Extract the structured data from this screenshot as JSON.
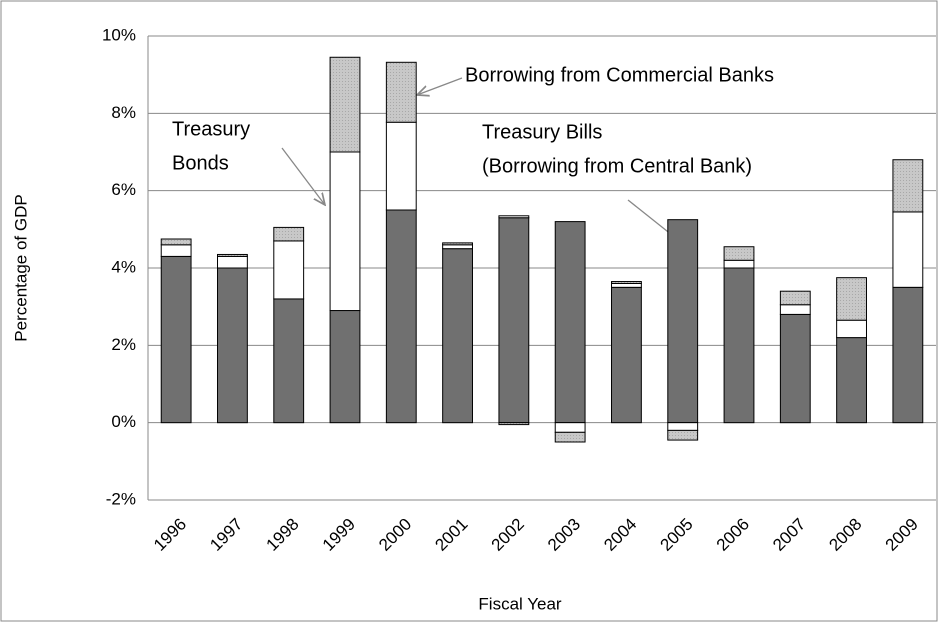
{
  "chart_data": {
    "type": "stacked_bar",
    "x_label": "Fiscal Year",
    "y_label": "Percentage of GDP",
    "categories": [
      "1996",
      "1997",
      "1998",
      "1999",
      "2000",
      "2001",
      "2002",
      "2003",
      "2004",
      "2005",
      "2006",
      "2007",
      "2008",
      "2009"
    ],
    "series": [
      {
        "name": [
          "Treasury Bills",
          "(Borrowing from Central Bank)"
        ],
        "color": "#707070",
        "values": [
          4.3,
          4.0,
          3.2,
          2.9,
          5.5,
          4.5,
          5.3,
          5.2,
          3.5,
          5.25,
          4.0,
          2.8,
          2.2,
          3.5
        ]
      },
      {
        "name": [
          "Treasury",
          "Bonds"
        ],
        "color": "#ffffff",
        "values": [
          0.3,
          0.3,
          1.5,
          4.1,
          2.27,
          0.1,
          0.05,
          -0.25,
          0.1,
          -0.2,
          0.2,
          0.25,
          0.45,
          1.95
        ]
      },
      {
        "name": [
          "Borrowing from Commercial Banks"
        ],
        "color": "#c8c8c8",
        "values": [
          0.15,
          0.05,
          0.35,
          2.45,
          1.55,
          0.05,
          -0.05,
          -0.25,
          0.05,
          -0.25,
          0.35,
          0.35,
          1.1,
          1.35
        ]
      }
    ],
    "ylim": [
      -2,
      10
    ],
    "yticks": [
      {
        "value": -2,
        "label": "-2%"
      },
      {
        "value": 0,
        "label": "0%"
      },
      {
        "value": 2,
        "label": "2%"
      },
      {
        "value": 4,
        "label": "4%"
      },
      {
        "value": 6,
        "label": "6%"
      },
      {
        "value": 8,
        "label": "8%"
      },
      {
        "value": 10,
        "label": "10%"
      }
    ],
    "grid": true
  }
}
